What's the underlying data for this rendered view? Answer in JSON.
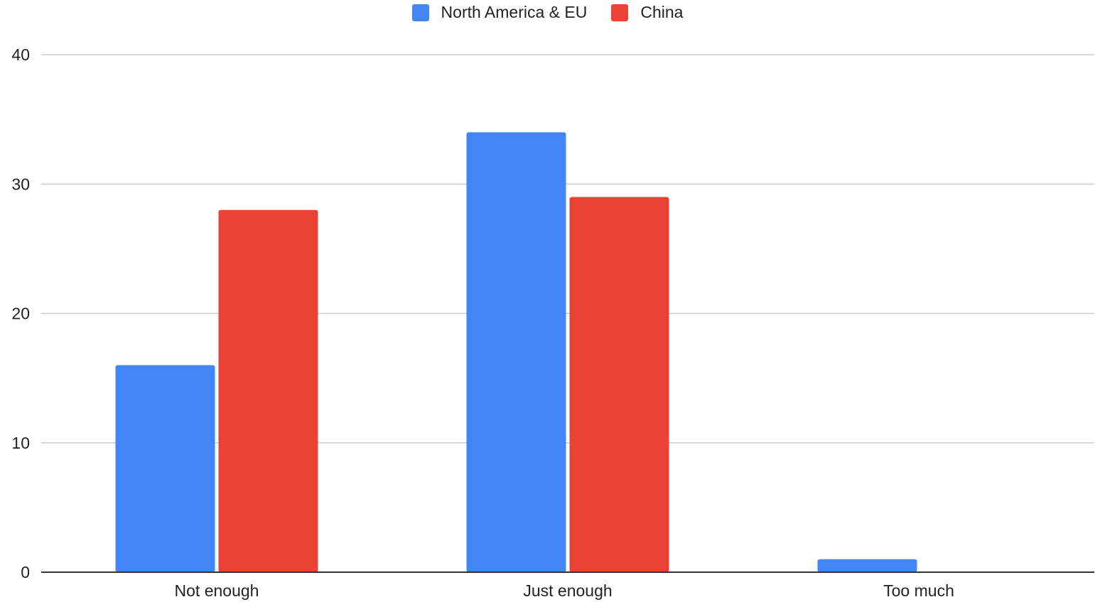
{
  "chart_data": {
    "type": "bar",
    "title": "",
    "xlabel": "",
    "ylabel": "",
    "categories": [
      "Not enough",
      "Just enough",
      "Too much"
    ],
    "series": [
      {
        "name": "North America & EU",
        "color": "#4285f4",
        "values": [
          16,
          34,
          1
        ]
      },
      {
        "name": "China",
        "color": "#ea4335",
        "values": [
          28,
          29,
          0
        ]
      }
    ],
    "ylim": [
      0,
      40
    ],
    "yticks": [
      "0",
      "10",
      "20",
      "30",
      "40"
    ],
    "grid": true,
    "legend_position": "top-center"
  }
}
